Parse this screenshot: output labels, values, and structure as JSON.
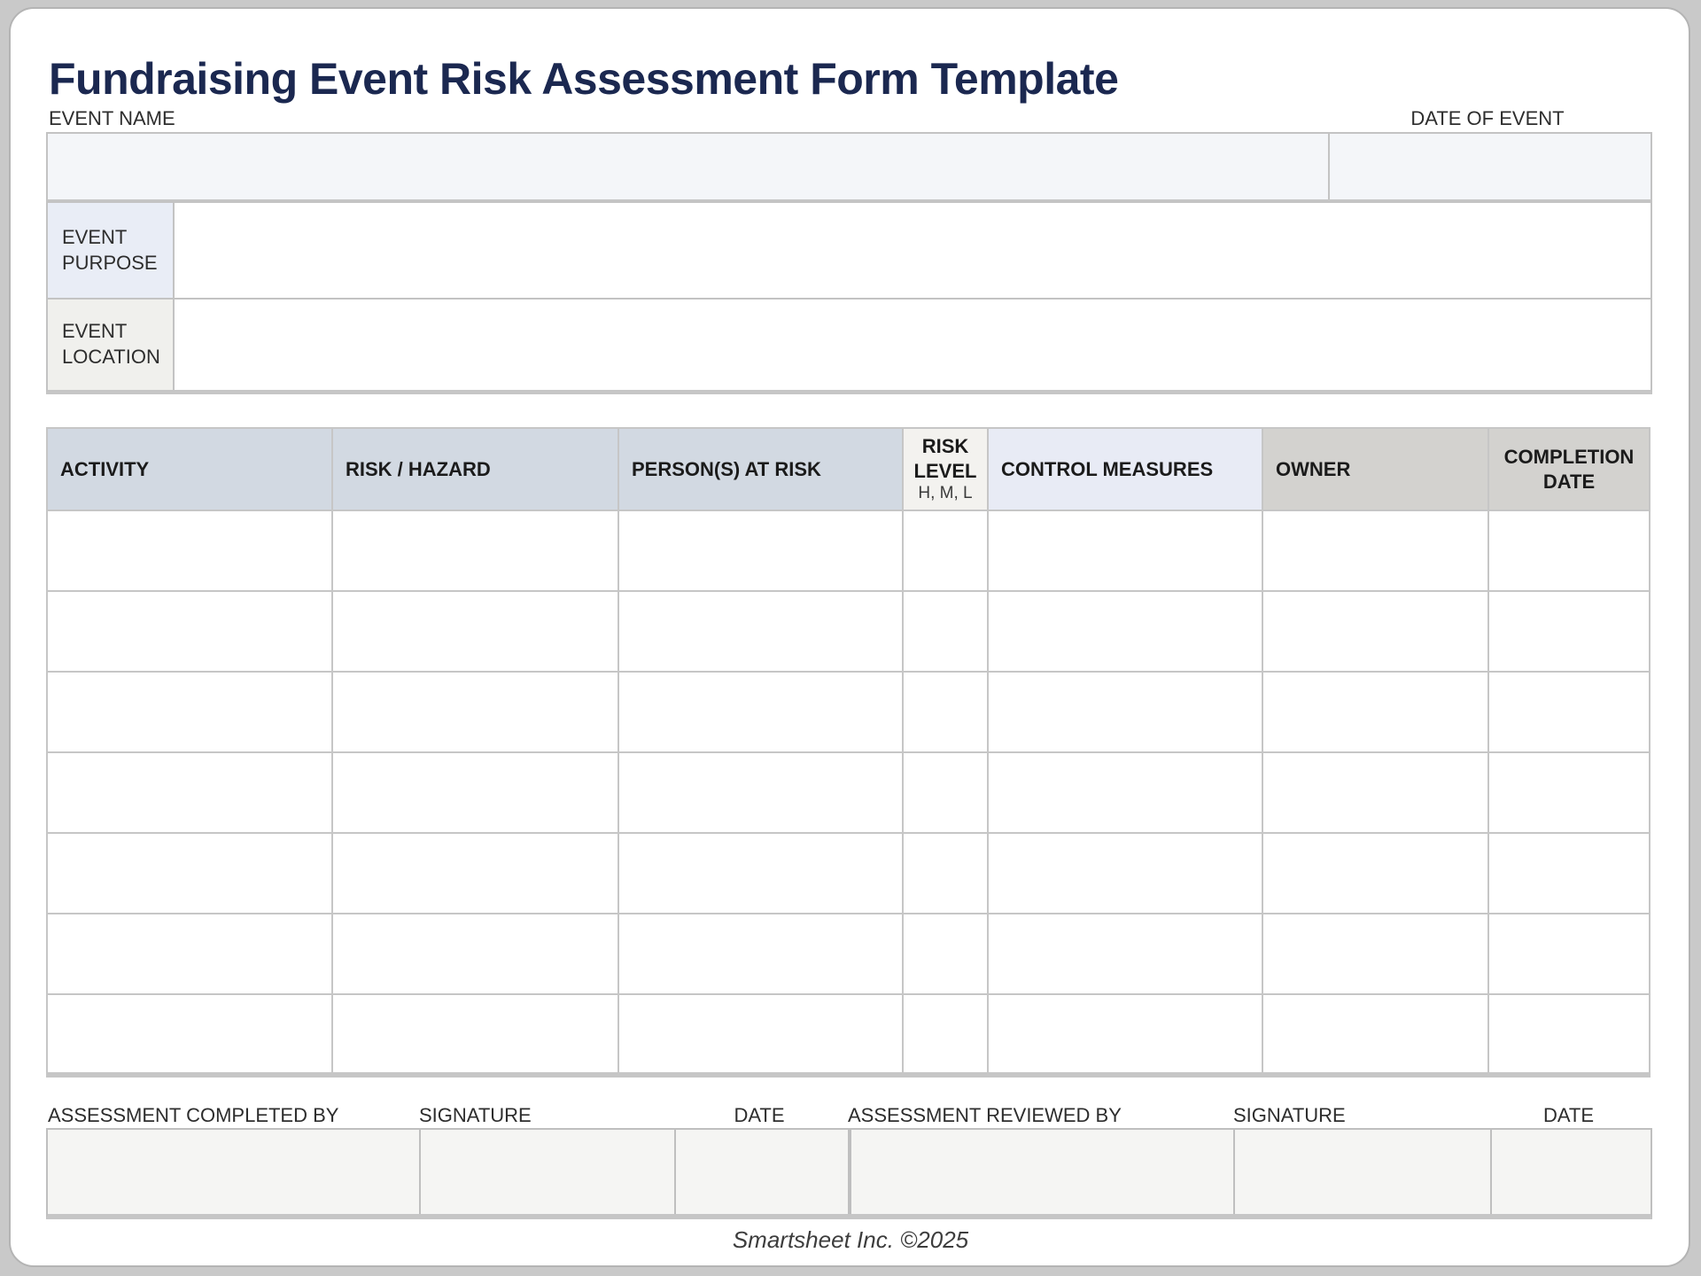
{
  "page": {
    "title": "Fundraising Event Risk Assessment Form Template",
    "footer": "Smartsheet Inc. ©2025",
    "colors": {
      "title_navy": "#1b2850",
      "outer_background": "#c9c9c9",
      "input_fill": "#f4f6f9",
      "signoff_fill": "#f5f5f3",
      "purpose_label_fill": "#e9edf6",
      "location_label_fill": "#f0f0ed"
    }
  },
  "event_fields": {
    "event_name": {
      "label": "EVENT NAME",
      "value": ""
    },
    "date_of_event": {
      "label": "DATE OF EVENT",
      "value": ""
    }
  },
  "details": {
    "purpose": {
      "label": "EVENT PURPOSE",
      "value": ""
    },
    "location": {
      "label": "EVENT LOCATION",
      "value": ""
    }
  },
  "main_table": {
    "columns": [
      {
        "label": "ACTIVITY",
        "bg": "#d2d9e2"
      },
      {
        "label": "RISK / HAZARD",
        "bg": "#d2d9e2"
      },
      {
        "label": "PERSON(S) AT RISK",
        "bg": "#d2d9e2"
      },
      {
        "label": "RISK LEVEL",
        "sub": "H, M, L",
        "bg": "#f3f2ef"
      },
      {
        "label": "CONTROL MEASURES",
        "bg": "#e8ebf5"
      },
      {
        "label": "OWNER",
        "bg": "#d3d2cf"
      },
      {
        "label": "COMPLETION DATE",
        "bg": "#d3d2cf"
      }
    ],
    "row_count": 7,
    "rows": [
      [
        "",
        "",
        "",
        "",
        "",
        "",
        ""
      ],
      [
        "",
        "",
        "",
        "",
        "",
        "",
        ""
      ],
      [
        "",
        "",
        "",
        "",
        "",
        "",
        ""
      ],
      [
        "",
        "",
        "",
        "",
        "",
        "",
        ""
      ],
      [
        "",
        "",
        "",
        "",
        "",
        "",
        ""
      ],
      [
        "",
        "",
        "",
        "",
        "",
        "",
        ""
      ],
      [
        "",
        "",
        "",
        "",
        "",
        "",
        ""
      ]
    ]
  },
  "signoff": {
    "fields": [
      {
        "label": "ASSESSMENT COMPLETED BY",
        "value": ""
      },
      {
        "label": "SIGNATURE",
        "value": ""
      },
      {
        "label": "DATE",
        "value": ""
      },
      {
        "label": "ASSESSMENT REVIEWED BY",
        "value": ""
      },
      {
        "label": "SIGNATURE",
        "value": ""
      },
      {
        "label": "DATE",
        "value": ""
      }
    ]
  }
}
